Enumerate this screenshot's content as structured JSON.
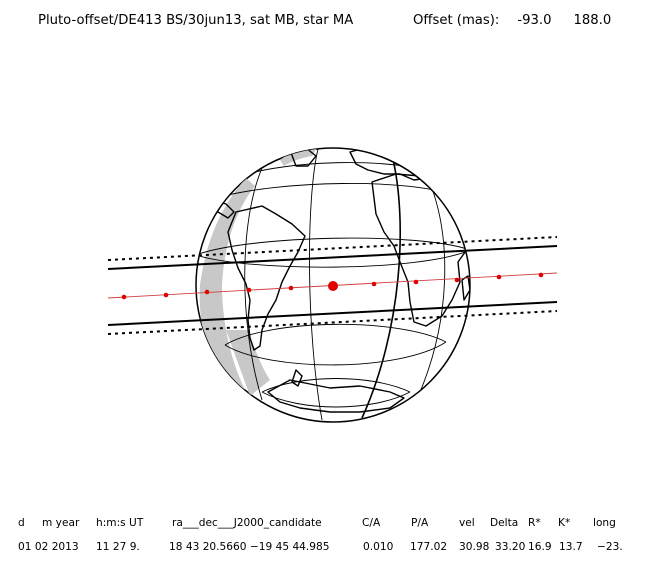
{
  "title": "Pluto-offset/DE413 BS/30jun13, sat MB, star MA",
  "offset": {
    "label": "Offset (mas):",
    "x": "-93.0",
    "y": "188.0"
  },
  "table": {
    "headers": [
      "d",
      "m year",
      "h:m:s UT",
      "ra___dec___J2000_candidate",
      "C/A",
      "P/A",
      "vel",
      "Delta",
      "R*",
      "K*",
      "long"
    ],
    "values": [
      "01 02 2013",
      "11 27 9.",
      "18 43 20.5660 −19 45 44.985",
      "0.010",
      "177.02",
      "30.98",
      "33.20",
      "16.9",
      "13.7",
      "−23."
    ]
  },
  "colors": {
    "ink": "#000000",
    "shadow": "#c8c8c8",
    "path": "#e00000"
  }
}
